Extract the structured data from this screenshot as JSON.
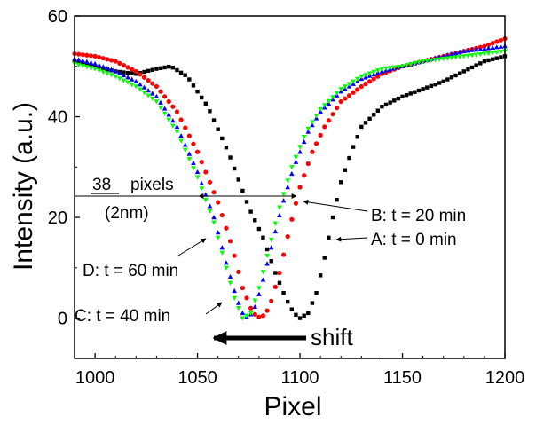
{
  "chart_data": {
    "type": "scatter",
    "title": "",
    "xlabel": "Pixel",
    "ylabel": "Intensity (a.u.)",
    "xlim": [
      990,
      1200
    ],
    "ylim": [
      -8,
      60
    ],
    "xticks": [
      1000,
      1050,
      1100,
      1150,
      1200
    ],
    "yticks": [
      0,
      20,
      40,
      60
    ],
    "legend": "none (series labeled by inline annotations)",
    "series": [
      {
        "name": "A: t = 0 min",
        "color": "#000000",
        "marker": "square",
        "knots": [
          [
            990,
            51
          ],
          [
            1000,
            50
          ],
          [
            1010,
            49
          ],
          [
            1020,
            48.5
          ],
          [
            1030,
            49.5
          ],
          [
            1037,
            50
          ],
          [
            1045,
            48
          ],
          [
            1055,
            42
          ],
          [
            1065,
            33
          ],
          [
            1075,
            22
          ],
          [
            1082,
            16
          ],
          [
            1088,
            9
          ],
          [
            1093,
            4
          ],
          [
            1097,
            1
          ],
          [
            1100,
            0
          ],
          [
            1104,
            1
          ],
          [
            1108,
            5
          ],
          [
            1112,
            12
          ],
          [
            1116,
            20
          ],
          [
            1120,
            27
          ],
          [
            1125,
            33
          ],
          [
            1130,
            38
          ],
          [
            1140,
            42
          ],
          [
            1150,
            44
          ],
          [
            1160,
            45.5
          ],
          [
            1170,
            47
          ],
          [
            1180,
            49
          ],
          [
            1190,
            51
          ],
          [
            1200,
            52
          ]
        ]
      },
      {
        "name": "B: t = 20 min",
        "color": "#ff0000",
        "marker": "circle",
        "knots": [
          [
            990,
            52.5
          ],
          [
            1000,
            52
          ],
          [
            1010,
            51
          ],
          [
            1020,
            49
          ],
          [
            1030,
            46
          ],
          [
            1040,
            41
          ],
          [
            1050,
            33
          ],
          [
            1060,
            23
          ],
          [
            1067,
            14
          ],
          [
            1072,
            6
          ],
          [
            1077,
            1
          ],
          [
            1081,
            0
          ],
          [
            1085,
            2
          ],
          [
            1090,
            9
          ],
          [
            1095,
            18
          ],
          [
            1100,
            26
          ],
          [
            1106,
            33
          ],
          [
            1112,
            38
          ],
          [
            1120,
            43
          ],
          [
            1130,
            46
          ],
          [
            1140,
            48.5
          ],
          [
            1150,
            50
          ],
          [
            1160,
            51
          ],
          [
            1170,
            52
          ],
          [
            1180,
            53
          ],
          [
            1190,
            54
          ],
          [
            1200,
            55.5
          ]
        ]
      },
      {
        "name": "C: t = 40 min",
        "color": "#0000ff",
        "marker": "triangle-up",
        "knots": [
          [
            990,
            51.5
          ],
          [
            1000,
            50.5
          ],
          [
            1010,
            49
          ],
          [
            1020,
            47
          ],
          [
            1030,
            44
          ],
          [
            1040,
            38
          ],
          [
            1050,
            29
          ],
          [
            1058,
            20
          ],
          [
            1064,
            11
          ],
          [
            1069,
            4
          ],
          [
            1073,
            0
          ],
          [
            1077,
            1
          ],
          [
            1081,
            6
          ],
          [
            1086,
            14
          ],
          [
            1091,
            22
          ],
          [
            1097,
            30
          ],
          [
            1104,
            37
          ],
          [
            1110,
            41
          ],
          [
            1120,
            45
          ],
          [
            1130,
            47.5
          ],
          [
            1140,
            49
          ],
          [
            1150,
            50
          ],
          [
            1160,
            51
          ],
          [
            1170,
            52
          ],
          [
            1180,
            53
          ],
          [
            1190,
            53.5
          ],
          [
            1200,
            54
          ]
        ]
      },
      {
        "name": "D: t = 60 min",
        "color": "#00ff00",
        "marker": "triangle-down",
        "knots": [
          [
            990,
            50.5
          ],
          [
            1000,
            49.5
          ],
          [
            1010,
            48
          ],
          [
            1020,
            46
          ],
          [
            1030,
            43
          ],
          [
            1040,
            37
          ],
          [
            1050,
            28
          ],
          [
            1058,
            19
          ],
          [
            1064,
            10
          ],
          [
            1068,
            4
          ],
          [
            1072,
            0
          ],
          [
            1076,
            1
          ],
          [
            1080,
            6
          ],
          [
            1085,
            14
          ],
          [
            1090,
            22
          ],
          [
            1096,
            30
          ],
          [
            1103,
            37
          ],
          [
            1110,
            41.5
          ],
          [
            1120,
            45.5
          ],
          [
            1130,
            48
          ],
          [
            1140,
            49.5
          ],
          [
            1150,
            50
          ],
          [
            1160,
            51
          ],
          [
            1170,
            51.5
          ],
          [
            1180,
            52
          ],
          [
            1190,
            52.5
          ],
          [
            1200,
            53
          ]
        ]
      }
    ],
    "annotations": {
      "pixels_value": "38",
      "pixels_unit": "pixels",
      "nm": "(2nm)",
      "label_b": "B: t = 20 min",
      "label_a": "A: t = 0 min",
      "label_d": "D: t = 60 min",
      "label_c": "C: t = 40 min",
      "shift": "shift"
    }
  }
}
